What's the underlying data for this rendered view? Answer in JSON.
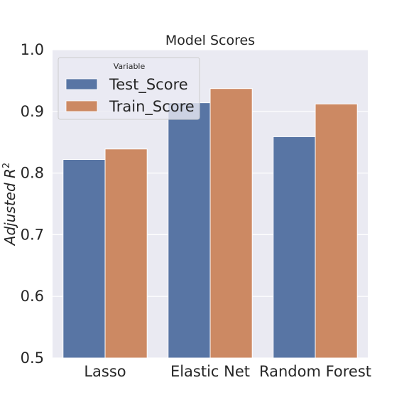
{
  "chart_data": {
    "type": "bar",
    "title": "Model Scores",
    "xlabel": "",
    "ylabel": "Adjusted R",
    "ylabel_superscript": "2",
    "categories": [
      "Lasso",
      "Elastic Net",
      "Random Forest"
    ],
    "series": [
      {
        "name": "Test_Score",
        "color": "#5875a4",
        "values": [
          0.822,
          0.914,
          0.859
        ]
      },
      {
        "name": "Train_Score",
        "color": "#cc8963",
        "values": [
          0.839,
          0.937,
          0.912
        ]
      }
    ],
    "ylim": [
      0.5,
      1.0
    ],
    "yticks": [
      0.5,
      0.6,
      0.7,
      0.8,
      0.9,
      1.0
    ],
    "ytick_labels": [
      "0.5",
      "0.6",
      "0.7",
      "0.8",
      "0.9",
      "1.0"
    ],
    "grid": true,
    "grid_color": "#ffffff",
    "plot_background": "#eaeaf2",
    "legend": {
      "title": "Variable",
      "placement": "top-left",
      "entries": [
        "Test_Score",
        "Train_Score"
      ]
    }
  }
}
